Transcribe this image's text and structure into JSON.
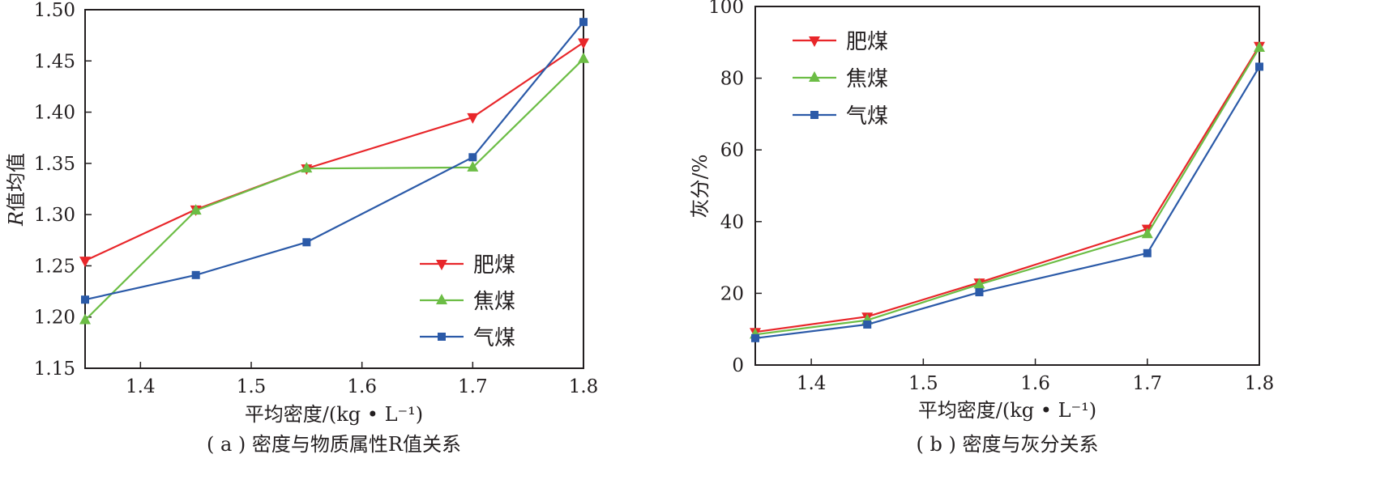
{
  "colors": {
    "fei_mei": "#e8262a",
    "jiao_mei": "#6cbd45",
    "qi_mei": "#2b5aa8",
    "axis": "#231f20"
  },
  "chart_data": [
    {
      "type": "line",
      "caption": "( a ) 密度与物质属性R值关系",
      "xlabel": "平均密度/(kg • L⁻¹)",
      "ylabel_italic": "R",
      "ylabel_rest": "值均值",
      "xlim": [
        1.35,
        1.8
      ],
      "ylim": [
        1.15,
        1.5
      ],
      "xticks": [
        "1.4",
        "1.5",
        "1.6",
        "1.7",
        "1.8"
      ],
      "yticks": [
        "1.15",
        "1.20",
        "1.25",
        "1.30",
        "1.35",
        "1.40",
        "1.45",
        "1.50"
      ],
      "legend_position": "lower-right",
      "x": [
        1.35,
        1.45,
        1.55,
        1.7,
        1.8
      ],
      "series": [
        {
          "name": "肥煤",
          "color": "#e8262a",
          "marker": "triangle-down",
          "values": [
            1.255,
            1.305,
            1.345,
            1.395,
            1.468
          ]
        },
        {
          "name": "焦煤",
          "color": "#6cbd45",
          "marker": "triangle-up",
          "values": [
            1.197,
            1.304,
            1.345,
            1.346,
            1.452
          ]
        },
        {
          "name": "气煤",
          "color": "#2b5aa8",
          "marker": "square",
          "values": [
            1.217,
            1.241,
            1.273,
            1.356,
            1.488
          ]
        }
      ]
    },
    {
      "type": "line",
      "caption": "( b ) 密度与灰分关系",
      "xlabel": "平均密度/(kg • L⁻¹)",
      "ylabel": "灰分/%",
      "xlim": [
        1.35,
        1.8
      ],
      "ylim": [
        0,
        100
      ],
      "xticks": [
        "1.4",
        "1.5",
        "1.6",
        "1.7",
        "1.8"
      ],
      "yticks": [
        "0",
        "20",
        "40",
        "60",
        "80",
        "100"
      ],
      "legend_position": "top-left",
      "x": [
        1.35,
        1.45,
        1.55,
        1.7,
        1.8
      ],
      "series": [
        {
          "name": "肥煤",
          "color": "#e8262a",
          "marker": "triangle-down",
          "values": [
            9.2,
            13.5,
            23.0,
            38.0,
            89.0
          ]
        },
        {
          "name": "焦煤",
          "color": "#6cbd45",
          "marker": "triangle-up",
          "values": [
            8.5,
            12.5,
            22.5,
            36.5,
            88.5
          ]
        },
        {
          "name": "气煤",
          "color": "#2b5aa8",
          "marker": "square",
          "values": [
            7.5,
            11.3,
            20.3,
            31.2,
            83.2
          ]
        }
      ]
    }
  ]
}
